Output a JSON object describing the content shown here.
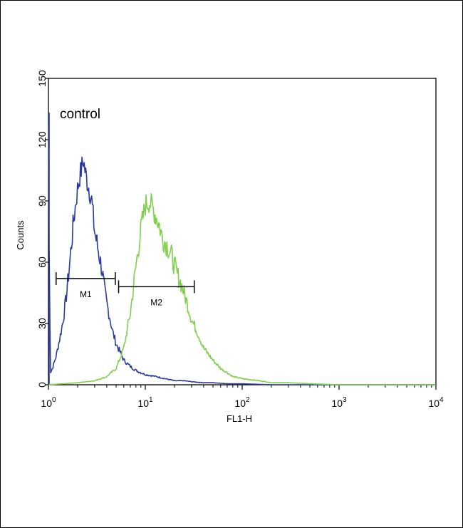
{
  "chart_data": {
    "type": "line",
    "title": "",
    "xlabel": "FL1-H",
    "ylabel": "Counts",
    "xscale": "log",
    "xlim": [
      1,
      10000
    ],
    "ylim": [
      0,
      150
    ],
    "x_ticks": [
      {
        "base": "10",
        "exp": "0",
        "value": 1
      },
      {
        "base": "10",
        "exp": "1",
        "value": 10
      },
      {
        "base": "10",
        "exp": "2",
        "value": 100
      },
      {
        "base": "10",
        "exp": "3",
        "value": 1000
      },
      {
        "base": "10",
        "exp": "4",
        "value": 10000
      }
    ],
    "y_ticks": [
      "0",
      "30",
      "60",
      "90",
      "120",
      "150"
    ],
    "y_tick_values": [
      0,
      30,
      60,
      90,
      120,
      150
    ],
    "annotation": "control",
    "grid": false,
    "legend": "none",
    "series": [
      {
        "color": "#2b3a9c",
        "x": [
          1.0,
          1.02,
          1.05,
          1.1,
          1.2,
          1.3,
          1.4,
          1.5,
          1.6,
          1.7,
          1.8,
          1.9,
          2.0,
          2.1,
          2.2,
          2.3,
          2.4,
          2.5,
          2.6,
          2.7,
          2.8,
          2.9,
          3.0,
          3.2,
          3.4,
          3.6,
          3.8,
          4.0,
          4.3,
          4.6,
          5.0,
          5.5,
          6.0,
          7.0,
          8.0,
          10,
          13,
          16,
          20,
          25,
          30,
          40,
          50,
          70,
          100,
          200,
          1000,
          10000
        ],
        "y": [
          133,
          60,
          6,
          8,
          14,
          22,
          30,
          40,
          52,
          65,
          78,
          88,
          96,
          102,
          106,
          110,
          104,
          100,
          97,
          94,
          90,
          82,
          75,
          68,
          62,
          55,
          46,
          40,
          33,
          26,
          20,
          16,
          12,
          9,
          7,
          5,
          4,
          3,
          2,
          2,
          1.5,
          1,
          1,
          0.5,
          0.5,
          0,
          0,
          0
        ]
      },
      {
        "color": "#7fd04b",
        "x": [
          1.0,
          2.0,
          3.0,
          4.0,
          5.0,
          6.0,
          7.0,
          8.0,
          9.0,
          10,
          11,
          12,
          13,
          14,
          15,
          17,
          19,
          21,
          24,
          27,
          30,
          35,
          40,
          50,
          60,
          70,
          80,
          100,
          150,
          200,
          300,
          500,
          1000,
          10000
        ],
        "y": [
          0,
          1,
          2,
          4,
          8,
          18,
          35,
          58,
          76,
          88,
          90,
          86,
          82,
          78,
          72,
          68,
          62,
          55,
          48,
          40,
          32,
          25,
          18,
          12,
          8,
          6,
          4,
          3,
          2,
          1,
          1,
          0.5,
          0,
          0
        ]
      }
    ],
    "markers": [
      {
        "label": "M1",
        "x_start": 1.2,
        "x_end": 4.9,
        "y": 52
      },
      {
        "label": "M2",
        "x_start": 5.3,
        "x_end": 32,
        "y": 48
      }
    ]
  }
}
